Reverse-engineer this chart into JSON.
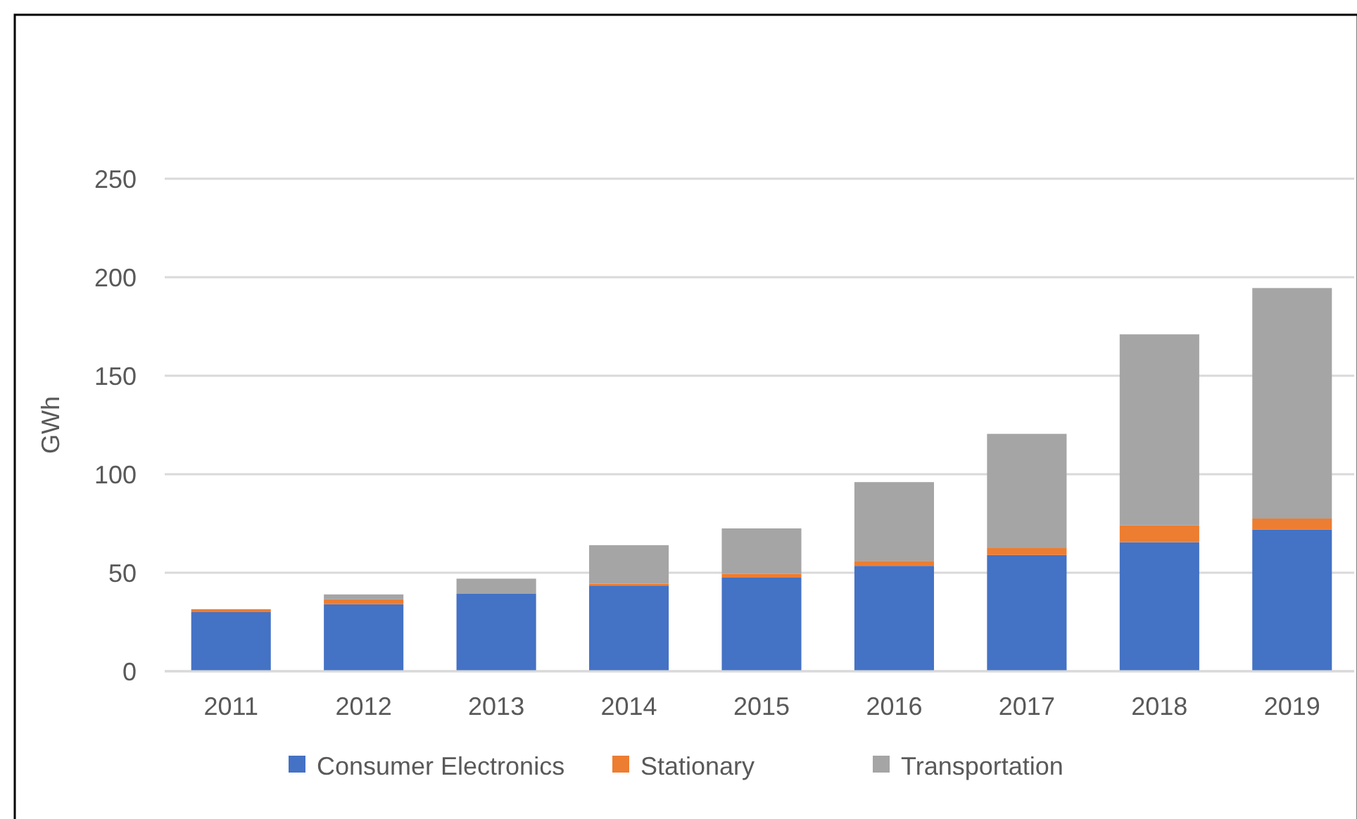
{
  "chart_data": {
    "type": "bar",
    "stacked": true,
    "ylabel": "GWh",
    "categories": [
      "2011",
      "2012",
      "2013",
      "2014",
      "2015",
      "2016",
      "2017",
      "2018",
      "2019"
    ],
    "series": [
      {
        "name": "Consumer Electronics",
        "color": "#4472c4",
        "values": [
          30,
          34,
          39.5,
          43.5,
          47.5,
          53.5,
          59,
          65.5,
          72
        ]
      },
      {
        "name": "Stationary",
        "color": "#ed7d31",
        "values": [
          1.5,
          2.5,
          0,
          1,
          2,
          2.5,
          3.5,
          8.5,
          5.5
        ]
      },
      {
        "name": "Transportation",
        "color": "#a5a5a5",
        "values": [
          null,
          2.5,
          7.5,
          19.5,
          23,
          40,
          58,
          97,
          117
        ]
      }
    ],
    "ylim": [
      0,
      250
    ],
    "yticks": [
      0,
      50,
      100,
      150,
      200,
      250
    ],
    "grid": "y",
    "legend": "bottom"
  }
}
